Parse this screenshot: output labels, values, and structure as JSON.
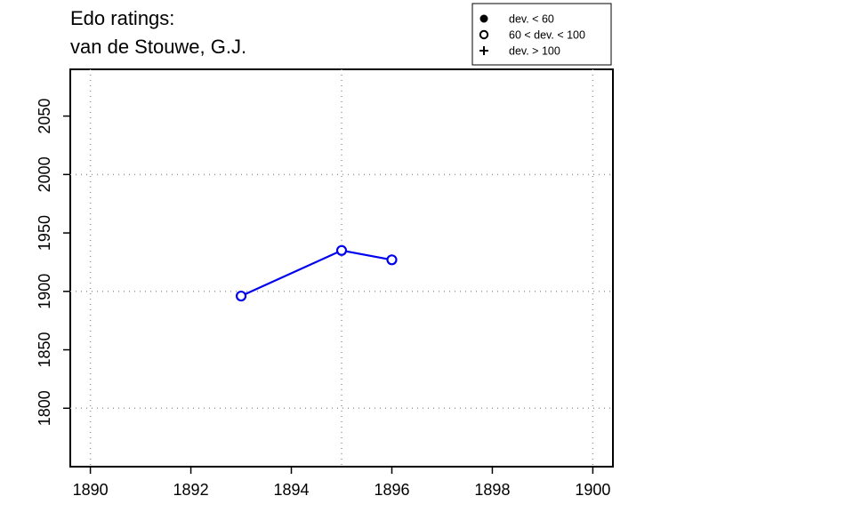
{
  "chart_data": {
    "type": "line",
    "title_lines": [
      "Edo ratings:",
      "van de Stouwe, G.J."
    ],
    "xlabel": "",
    "ylabel": "",
    "xlim": [
      1889.6,
      1900.4
    ],
    "ylim": [
      1750,
      2090
    ],
    "x_ticks": [
      1890,
      1892,
      1894,
      1896,
      1898,
      1900
    ],
    "y_ticks": [
      1800,
      1850,
      1900,
      1950,
      2000,
      2050
    ],
    "grid_x": [
      1890,
      1895,
      1900
    ],
    "grid_y": [
      1800,
      1900,
      2000
    ],
    "grid": true,
    "legend_position": "top-right",
    "legend": [
      {
        "marker": "filled-circle",
        "label": "dev. < 60"
      },
      {
        "marker": "open-circle",
        "label": "60 < dev. < 100"
      },
      {
        "marker": "plus",
        "label": "dev. > 100"
      }
    ],
    "series": [
      {
        "color": "#0000ee",
        "marker": "open-circle",
        "x": [
          1893,
          1895,
          1896
        ],
        "y": [
          1896,
          1935,
          1927
        ]
      }
    ]
  }
}
